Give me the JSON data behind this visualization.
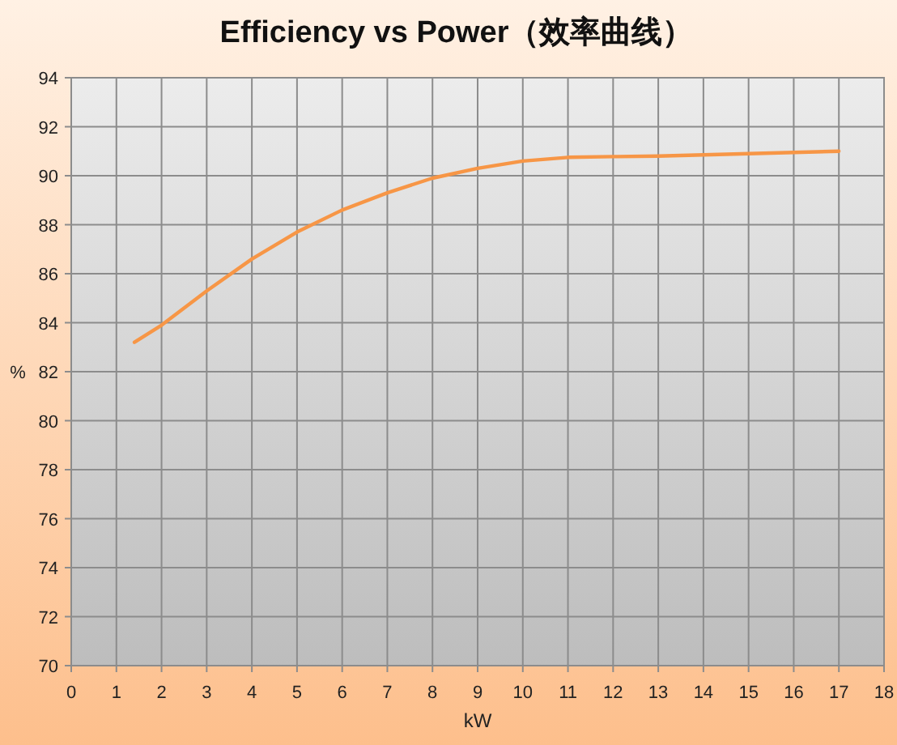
{
  "chart_data": {
    "type": "line",
    "title": "Efficiency vs Power（效率曲线）",
    "xlabel": "kW",
    "ylabel": "%",
    "x": [
      1.4,
      2,
      3,
      4,
      5,
      6,
      7,
      8,
      9,
      10,
      11,
      12,
      13,
      14,
      15,
      16,
      17
    ],
    "series": [
      {
        "color": "#f79646",
        "values": [
          83.2,
          83.9,
          85.3,
          86.6,
          87.7,
          88.6,
          89.3,
          89.9,
          90.3,
          90.6,
          90.75,
          90.78,
          90.8,
          90.85,
          90.9,
          90.95,
          91.0
        ]
      }
    ],
    "xlim": [
      0,
      18
    ],
    "ylim": [
      70,
      94
    ],
    "xticks": [
      0,
      1,
      2,
      3,
      4,
      5,
      6,
      7,
      8,
      9,
      10,
      11,
      12,
      13,
      14,
      15,
      16,
      17,
      18
    ],
    "yticks": [
      70,
      72,
      74,
      76,
      78,
      80,
      82,
      84,
      86,
      88,
      90,
      92,
      94
    ],
    "grid": true,
    "marker": "none",
    "line_style": "solid"
  }
}
